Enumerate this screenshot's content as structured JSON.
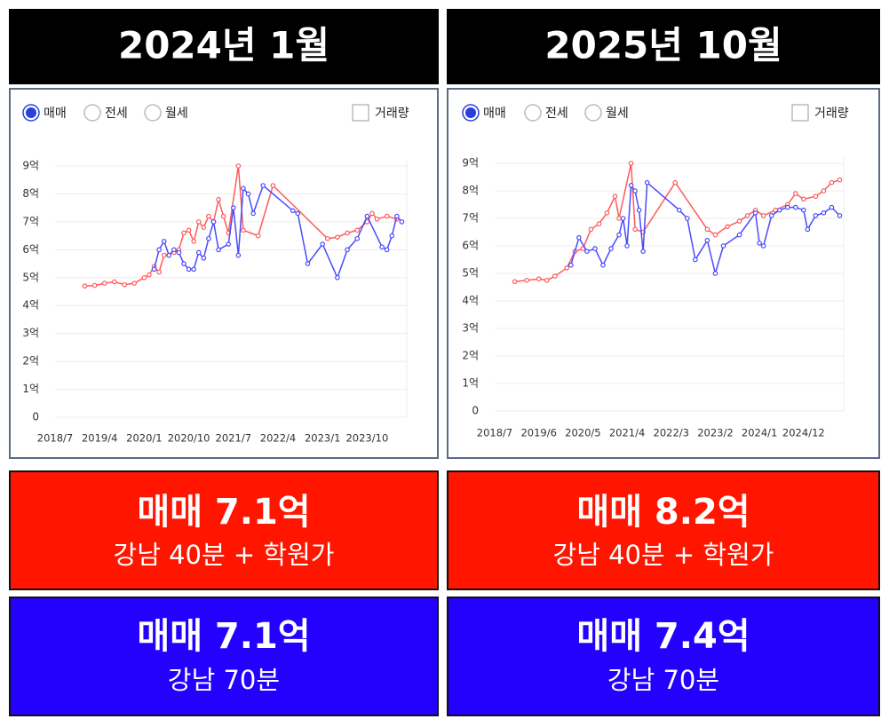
{
  "panels": [
    {
      "header": "2024년 1월",
      "options": [
        "매매",
        "전세",
        "월세"
      ],
      "checkbox": "거래량",
      "price_box": {
        "title": "매매 7.1억",
        "subtitle": "강남 40분 + 학원가"
      },
      "alt_box": {
        "title": "매매 7.1억",
        "subtitle": "강남 70분"
      }
    },
    {
      "header": "2025년 10월",
      "options": [
        "매매",
        "전세",
        "월세"
      ],
      "checkbox": "거래량",
      "price_box": {
        "title": "매매 8.2억",
        "subtitle": "강남 40분 + 학원가"
      },
      "alt_box": {
        "title": "매매 7.4억",
        "subtitle": "강남 70분"
      }
    }
  ],
  "chart_data": [
    {
      "type": "line",
      "grid": true,
      "xlim": [
        "2018/7",
        "2024/6"
      ],
      "xticks": [
        "2018/7",
        "2019/4",
        "2020/1",
        "2020/10",
        "2021/7",
        "2022/4",
        "2023/1",
        "2023/10"
      ],
      "ylim": [
        0,
        9
      ],
      "yticks": [
        0,
        {
          "value": 1,
          "label": "1억"
        },
        {
          "value": 2,
          "label": "2억"
        },
        {
          "value": 3,
          "label": "3억"
        },
        {
          "value": 4,
          "label": "4억"
        },
        {
          "value": 5,
          "label": "5억"
        },
        {
          "value": 6,
          "label": "6억"
        },
        {
          "value": 7,
          "label": "7억"
        },
        {
          "value": 8,
          "label": "8억"
        },
        {
          "value": 9,
          "label": "9억"
        }
      ],
      "series": [
        {
          "color": "#ff5a5a",
          "x": [
            "2019/1",
            "2019/3",
            "2019/5",
            "2019/7",
            "2019/9",
            "2019/11",
            "2020/1",
            "2020/2",
            "2020/3",
            "2020/4",
            "2020/5",
            "2020/7",
            "2020/8",
            "2020/9",
            "2020/10",
            "2020/11",
            "2020/12",
            "2021/1",
            "2021/2",
            "2021/3",
            "2021/4",
            "2021/5",
            "2021/6",
            "2021/8",
            "2021/9",
            "2021/12",
            "2022/3",
            "2023/2",
            "2023/4",
            "2023/6",
            "2023/8",
            "2023/10",
            "2023/11",
            "2023/12",
            "2024/2",
            "2024/4"
          ],
          "values": [
            4.7,
            4.72,
            4.8,
            4.85,
            4.75,
            4.8,
            5.0,
            5.1,
            5.4,
            5.2,
            5.8,
            5.9,
            6.0,
            6.6,
            6.7,
            6.3,
            7.0,
            6.8,
            7.2,
            7.0,
            7.8,
            7.2,
            6.6,
            9.0,
            6.7,
            6.5,
            8.3,
            6.4,
            6.45,
            6.6,
            6.7,
            7.0,
            7.3,
            7.1,
            7.2,
            7.1
          ]
        },
        {
          "color": "#4a4aff",
          "x": [
            "2020/3",
            "2020/4",
            "2020/5",
            "2020/6",
            "2020/7",
            "2020/8",
            "2020/9",
            "2020/10",
            "2020/11",
            "2020/12",
            "2021/1",
            "2021/2",
            "2021/3",
            "2021/4",
            "2021/6",
            "2021/7",
            "2021/8",
            "2021/9",
            "2021/10",
            "2021/11",
            "2022/1",
            "2022/7",
            "2022/8",
            "2022/10",
            "2023/1",
            "2023/4",
            "2023/6",
            "2023/8",
            "2023/10",
            "2024/1",
            "2024/2",
            "2024/3",
            "2024/4",
            "2024/5"
          ],
          "values": [
            5.3,
            6.0,
            6.3,
            5.8,
            6.0,
            5.9,
            5.5,
            5.3,
            5.3,
            5.9,
            5.7,
            6.4,
            7.0,
            6.0,
            6.2,
            7.5,
            5.8,
            8.2,
            8.0,
            7.3,
            8.3,
            7.4,
            7.3,
            5.5,
            6.2,
            5.0,
            6.0,
            6.4,
            7.2,
            6.1,
            6.0,
            6.5,
            7.2,
            7.0
          ]
        }
      ]
    },
    {
      "type": "line",
      "grid": true,
      "xlim": [
        "2018/7",
        "2025/10"
      ],
      "xticks": [
        "2018/7",
        "2019/6",
        "2020/5",
        "2021/4",
        "2022/3",
        "2023/2",
        "2024/1",
        "2024/12"
      ],
      "ylim": [
        0,
        9
      ],
      "yticks": [
        0,
        {
          "value": 1,
          "label": "1억"
        },
        {
          "value": 2,
          "label": "2억"
        },
        {
          "value": 3,
          "label": "3억"
        },
        {
          "value": 4,
          "label": "4억"
        },
        {
          "value": 5,
          "label": "5억"
        },
        {
          "value": 6,
          "label": "6억"
        },
        {
          "value": 7,
          "label": "7억"
        },
        {
          "value": 8,
          "label": "8억"
        },
        {
          "value": 9,
          "label": "9억"
        }
      ],
      "series": [
        {
          "color": "#ff5a5a",
          "x": [
            "2018/12",
            "2019/3",
            "2019/6",
            "2019/8",
            "2019/10",
            "2020/1",
            "2020/3",
            "2020/5",
            "2020/7",
            "2020/9",
            "2020/11",
            "2021/1",
            "2021/2",
            "2021/5",
            "2021/6",
            "2021/8",
            "2022/4",
            "2022/12",
            "2023/2",
            "2023/5",
            "2023/8",
            "2023/10",
            "2023/12",
            "2024/2",
            "2024/5",
            "2024/8",
            "2024/10",
            "2024/12",
            "2025/3",
            "2025/5",
            "2025/7",
            "2025/9"
          ],
          "values": [
            4.7,
            4.75,
            4.8,
            4.75,
            4.9,
            5.2,
            5.8,
            5.9,
            6.6,
            6.8,
            7.2,
            7.8,
            7.0,
            9.0,
            6.6,
            6.5,
            8.3,
            6.6,
            6.4,
            6.7,
            6.9,
            7.1,
            7.3,
            7.1,
            7.3,
            7.5,
            7.9,
            7.7,
            7.8,
            8.0,
            8.3,
            8.4
          ]
        },
        {
          "color": "#4a4aff",
          "x": [
            "2020/2",
            "2020/4",
            "2020/6",
            "2020/8",
            "2020/10",
            "2020/12",
            "2021/2",
            "2021/3",
            "2021/4",
            "2021/5",
            "2021/6",
            "2021/7",
            "2021/8",
            "2021/9",
            "2022/5",
            "2022/7",
            "2022/9",
            "2022/12",
            "2023/2",
            "2023/4",
            "2023/8",
            "2023/12",
            "2024/1",
            "2024/2",
            "2024/4",
            "2024/6",
            "2024/8",
            "2024/10",
            "2024/12",
            "2025/1",
            "2025/3",
            "2025/5",
            "2025/7",
            "2025/9"
          ],
          "values": [
            5.3,
            6.3,
            5.8,
            5.9,
            5.3,
            5.9,
            6.4,
            7.0,
            6.0,
            8.2,
            8.0,
            7.3,
            5.8,
            8.3,
            7.3,
            7.0,
            5.5,
            6.2,
            5.0,
            6.0,
            6.4,
            7.2,
            6.1,
            6.0,
            7.1,
            7.3,
            7.4,
            7.4,
            7.3,
            6.6,
            7.1,
            7.2,
            7.4,
            7.1
          ]
        }
      ]
    }
  ]
}
